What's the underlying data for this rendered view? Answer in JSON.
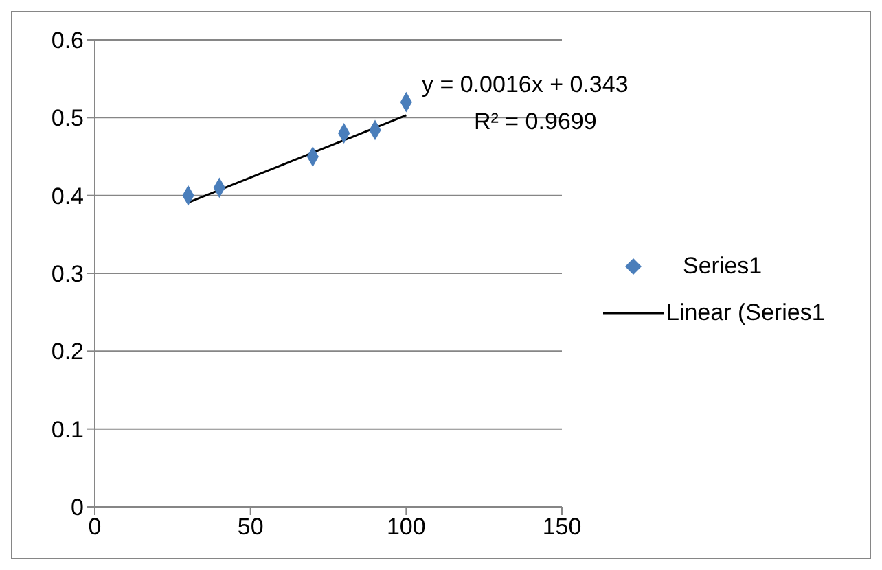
{
  "chart_data": {
    "type": "scatter",
    "series": [
      {
        "name": "Series1",
        "color": "#4a7ebb",
        "marker": "diamond",
        "x": [
          30,
          40,
          70,
          80,
          90,
          100
        ],
        "values": [
          0.4,
          0.41,
          0.45,
          0.48,
          0.484,
          0.52
        ]
      },
      {
        "name": "Linear (Series1",
        "type": "line",
        "color": "#000000",
        "marker": "none",
        "line_style": "solid",
        "x": [
          30,
          100
        ],
        "values": [
          0.391,
          0.503
        ]
      }
    ],
    "xlim": [
      0,
      150
    ],
    "xticks": [
      0,
      50,
      100,
      150
    ],
    "ylim": [
      0,
      0.6
    ],
    "yticks": [
      0,
      0.1,
      0.2,
      0.3,
      0.4,
      0.5,
      0.6
    ],
    "grid": "y",
    "legend": "right",
    "annotations": [
      "y = 0.0016x + 0.343",
      "R² = 0.9699"
    ]
  }
}
